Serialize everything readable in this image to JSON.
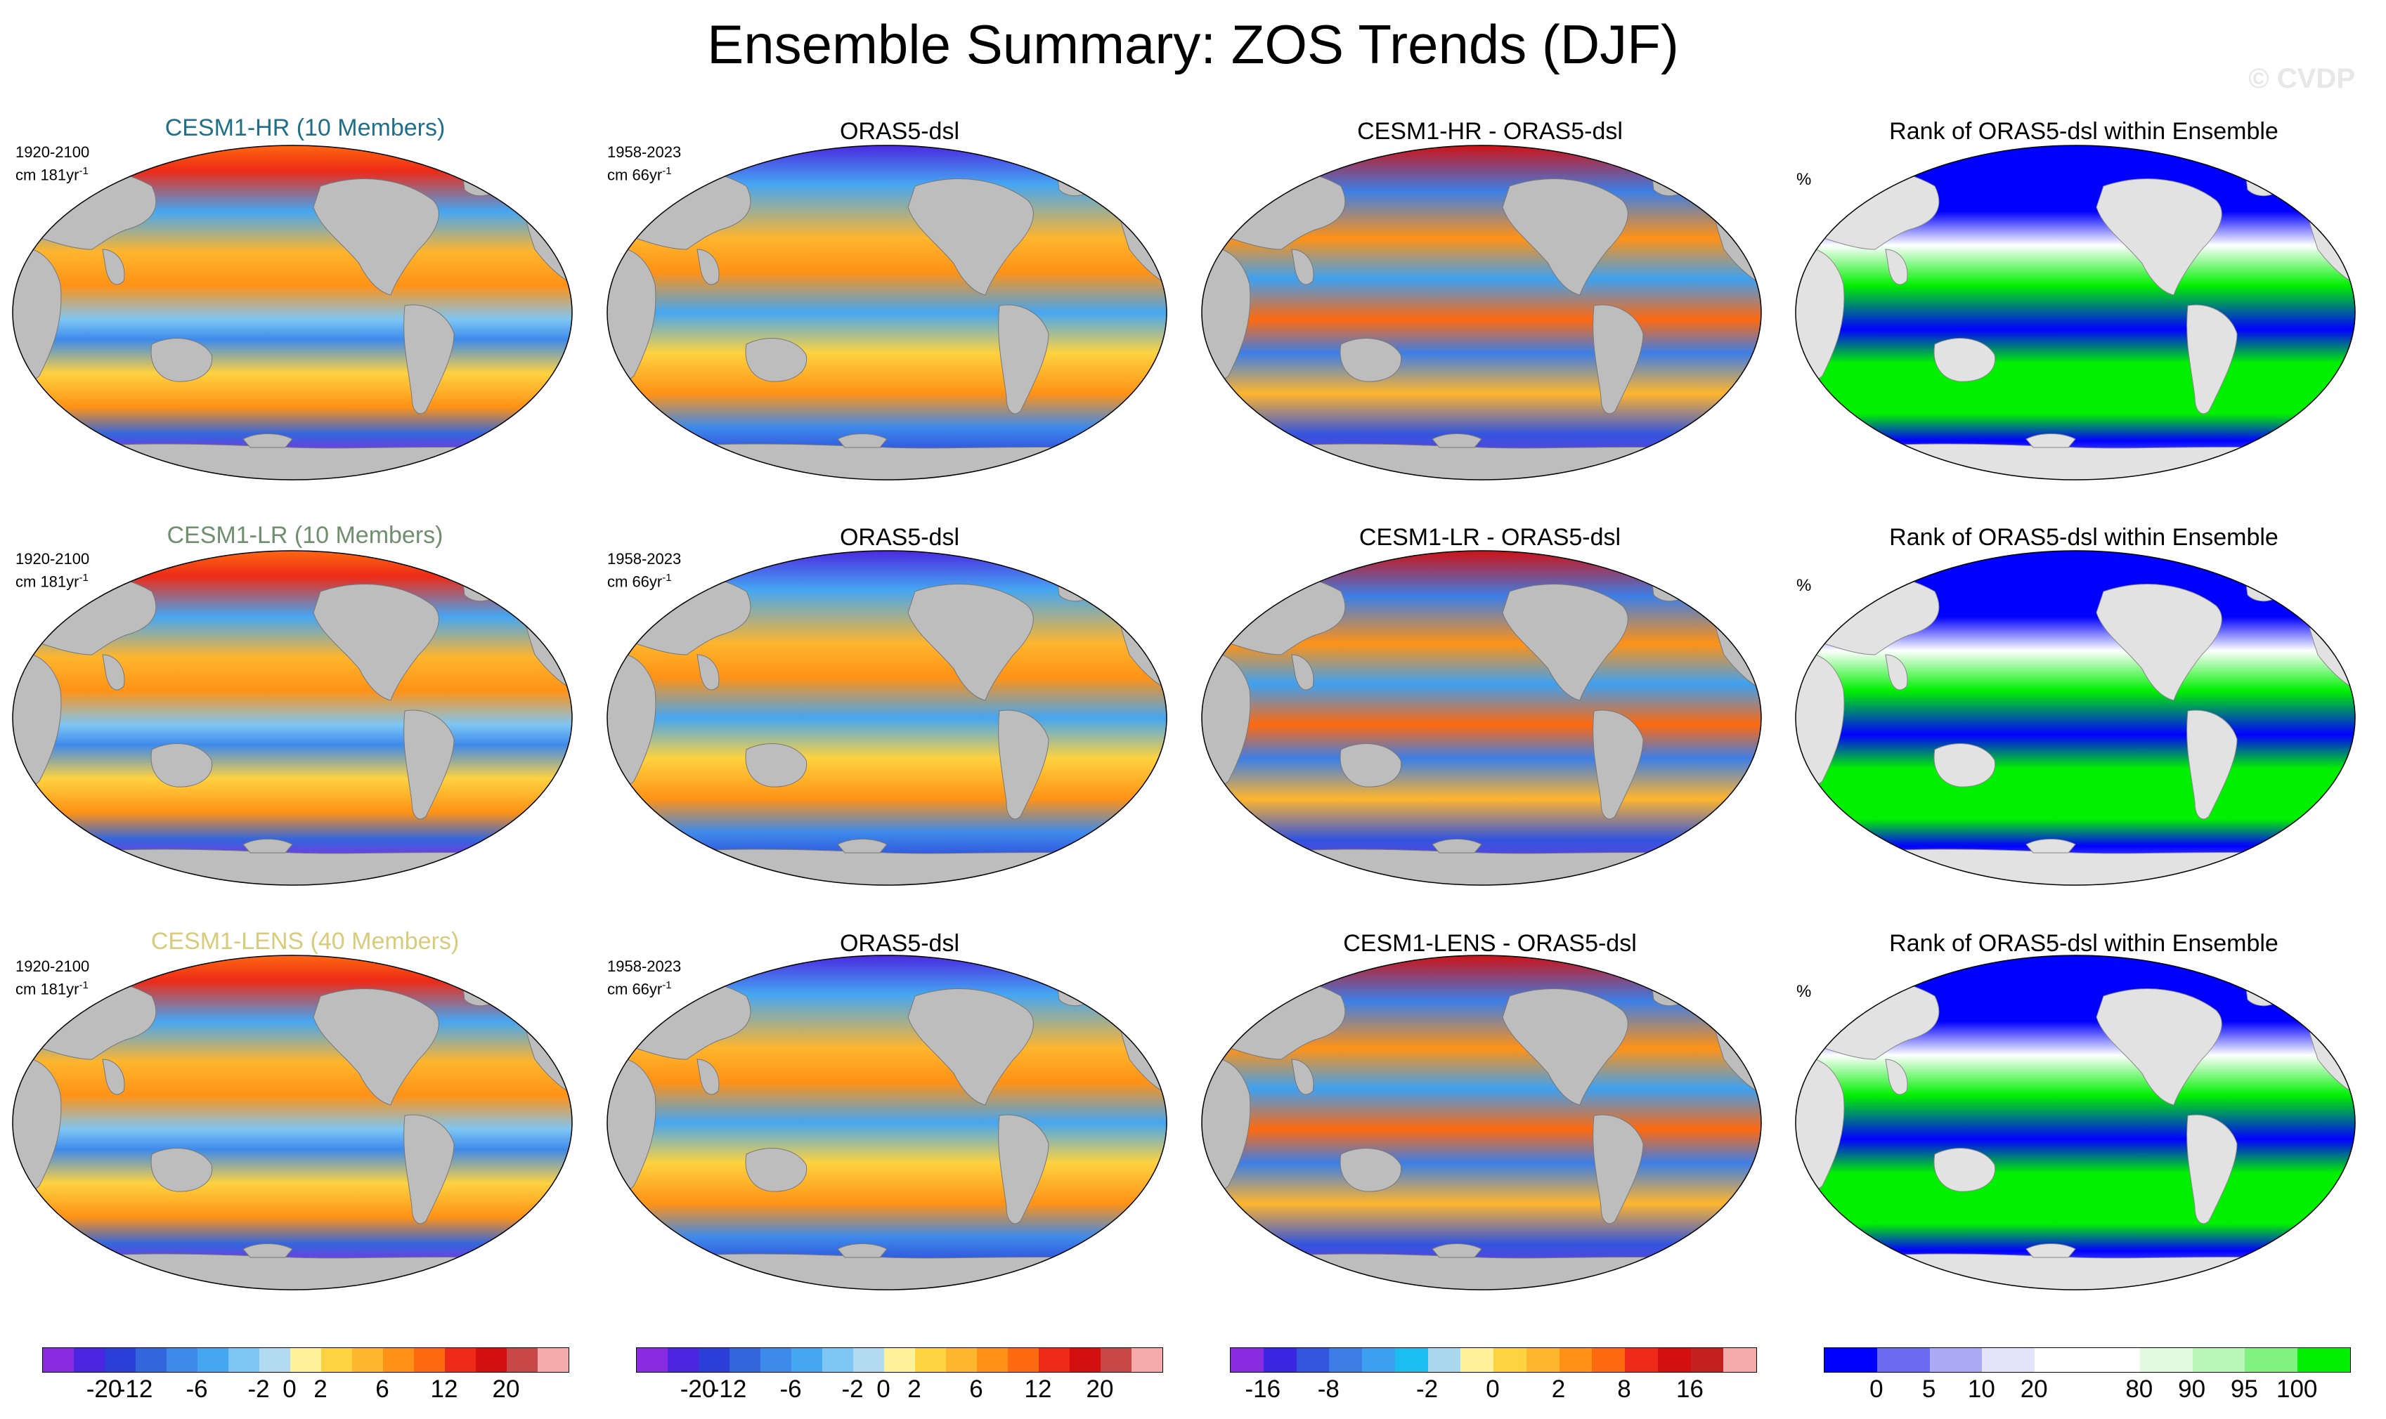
{
  "title": "Ensemble Summary: ZOS Trends (DJF)",
  "watermark": "© CVDP",
  "colors": {
    "land": "#bdbdbd",
    "land_rank": "#e2e2e2",
    "model_cesm1_hr": "#1f6f8b",
    "model_cesm1_lr": "#6f8f6f",
    "model_cesm1_lens": "#d8cb7a"
  },
  "rows": [
    {
      "model": {
        "title": "CESM1-HR (10 Members)",
        "title_color": "#1f6f8b",
        "period": "1920-2100",
        "units": "cm 181yr",
        "units_exp": "-1"
      },
      "obs": {
        "title": "ORAS5-dsl",
        "period": "1958-2023",
        "units": "cm 66yr",
        "units_exp": "-1"
      },
      "diff": {
        "title": "CESM1-HR - ORAS5-dsl"
      },
      "rank": {
        "title": "Rank of ORAS5-dsl within Ensemble",
        "units": "%"
      }
    },
    {
      "model": {
        "title": "CESM1-LR (10 Members)",
        "title_color": "#6f8f6f",
        "period": "1920-2100",
        "units": "cm 181yr",
        "units_exp": "-1"
      },
      "obs": {
        "title": "ORAS5-dsl",
        "period": "1958-2023",
        "units": "cm 66yr",
        "units_exp": "-1"
      },
      "diff": {
        "title": "CESM1-LR - ORAS5-dsl"
      },
      "rank": {
        "title": "Rank of ORAS5-dsl within Ensemble",
        "units": "%"
      }
    },
    {
      "model": {
        "title": "CESM1-LENS (40 Members)",
        "title_color": "#d8cb7a",
        "period": "1920-2100",
        "units": "cm 181yr",
        "units_exp": "-1"
      },
      "obs": {
        "title": "ORAS5-dsl",
        "period": "1958-2023",
        "units": "cm 66yr",
        "units_exp": "-1"
      },
      "diff": {
        "title": "CESM1-LENS - ORAS5-dsl"
      },
      "rank": {
        "title": "Rank of ORAS5-dsl within Ensemble",
        "units": "%"
      }
    }
  ],
  "legends": {
    "trend": {
      "colors": [
        "#8a2be2",
        "#4b25e0",
        "#2b3ed8",
        "#3366dd",
        "#3d8aeb",
        "#45a6f2",
        "#7ec6f4",
        "#b2dbf2",
        "#fff29a",
        "#ffd23f",
        "#ffb52d",
        "#ff9216",
        "#ff6a10",
        "#ed2a17",
        "#d30f0f",
        "#c84747",
        "#f6abab"
      ],
      "labels": [
        "-20",
        "-12",
        "-6",
        "-2",
        "0",
        "2",
        "6",
        "12",
        "20"
      ]
    },
    "diff": {
      "colors": [
        "#8a2be2",
        "#3a26e0",
        "#3355dd",
        "#3d7ee6",
        "#3ea0f0",
        "#1bbef0",
        "#a9d8ee",
        "#fff29a",
        "#ffd23f",
        "#ffb52d",
        "#ff9216",
        "#ff6a10",
        "#ed2a17",
        "#d30f0f",
        "#c42020",
        "#f6abab"
      ],
      "labels": [
        "-16",
        "-8",
        "-2",
        "0",
        "2",
        "8",
        "16"
      ]
    },
    "rank": {
      "colors": [
        "#0000ff",
        "#6b6bf2",
        "#aaaaf5",
        "#e4e4fa",
        "#ffffff",
        "#ffffff",
        "#e0fbe0",
        "#b7f6b7",
        "#7ff27f",
        "#00f000"
      ],
      "labels": [
        "0",
        "5",
        "10",
        "20",
        "80",
        "90",
        "95",
        "100"
      ]
    }
  }
}
